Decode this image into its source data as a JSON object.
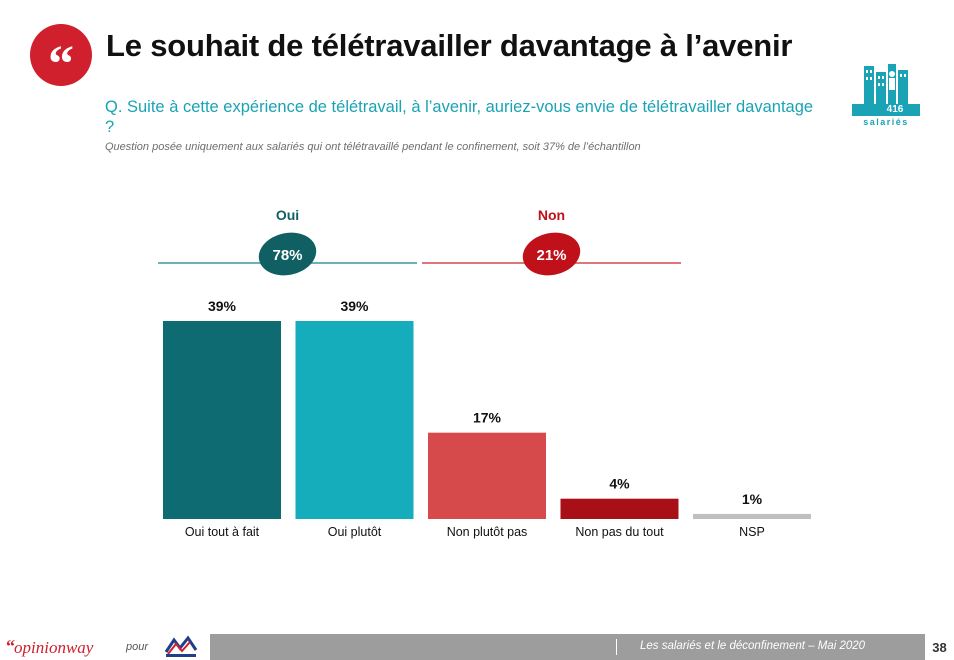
{
  "header": {
    "quote_icon": "quote-icon",
    "title": "Le souhait de télétravailler davantage à l’avenir",
    "question": "Q. Suite à cette expérience de télétravail, à l’avenir, auriez-vous envie de télétravailler davantage ?",
    "note": "Question posée uniquement aux salariés qui ont télétravaillé pendant le confinement, soit 37% de l’échantillon"
  },
  "sample": {
    "icon": "building-people-icon",
    "count": "416",
    "label": "salariés"
  },
  "chart_data": {
    "type": "bar",
    "categories": [
      "Oui tout à fait",
      "Oui plutôt",
      "Non plutôt pas",
      "Non pas du tout",
      "NSP"
    ],
    "values": [
      39,
      39,
      17,
      4,
      1
    ],
    "value_labels": [
      "39%",
      "39%",
      "17%",
      "4%",
      "1%"
    ],
    "colors": [
      "#0f6b72",
      "#15adbb",
      "#d64a4b",
      "#a80f16",
      "#bfbfbf"
    ],
    "ylim": [
      0,
      39
    ],
    "groups": [
      {
        "label": "Oui",
        "total": "78%",
        "color": "#0f5f63",
        "line_color": "#3a9a9d",
        "label_color": "#0f5f63"
      },
      {
        "label": "Non",
        "total": "21%",
        "color": "#c0101a",
        "line_color": "#d44a4f",
        "label_color": "#c0101a"
      }
    ],
    "grid": false
  },
  "footer": {
    "brand_quote": "“",
    "brand_name": "opinionway",
    "pour": "pour",
    "partner_logo": "medef-logo",
    "caption": "Les salariés et le déconfinement – Mai 2020",
    "page": "38"
  }
}
